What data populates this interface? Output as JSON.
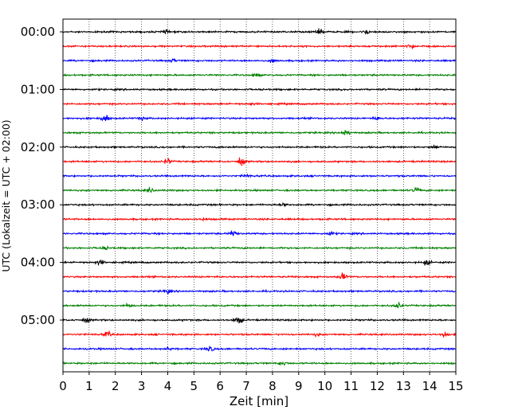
{
  "chart_data": {
    "type": "line",
    "title": "",
    "xlabel": "Zeit  [min]",
    "ylabel": "UTC (Lokalzeit = UTC + 02:00)",
    "xlim": [
      0,
      15
    ],
    "x_ticks": [
      0,
      1,
      2,
      3,
      4,
      5,
      6,
      7,
      8,
      9,
      10,
      11,
      12,
      13,
      14,
      15
    ],
    "y_tick_labels": [
      "00:00",
      "01:00",
      "02:00",
      "03:00",
      "04:00",
      "05:00"
    ],
    "grid": "vertical dotted lines at each minute",
    "legend": "none",
    "trace_interval_minutes": 15,
    "trace_colors": [
      "#000000",
      "#ff0000",
      "#0000ff",
      "#008000"
    ],
    "traces": [
      {
        "start": "00:00",
        "events": [
          [
            3.9,
            0.55
          ],
          [
            9.8,
            1.0
          ],
          [
            11.6,
            0.7
          ]
        ]
      },
      {
        "start": "00:15",
        "events": [
          [
            13.3,
            0.9
          ]
        ]
      },
      {
        "start": "00:30",
        "events": [
          [
            4.2,
            0.5
          ],
          [
            8.0,
            0.6
          ]
        ]
      },
      {
        "start": "00:45",
        "events": [
          [
            7.4,
            0.5
          ]
        ]
      },
      {
        "start": "01:00",
        "events": []
      },
      {
        "start": "01:15",
        "events": [
          [
            7.2,
            0.4
          ]
        ]
      },
      {
        "start": "01:30",
        "events": [
          [
            1.6,
            1.6
          ],
          [
            3.0,
            0.6
          ],
          [
            12.0,
            0.6
          ]
        ]
      },
      {
        "start": "01:45",
        "events": [
          [
            10.8,
            1.0
          ]
        ]
      },
      {
        "start": "02:00",
        "events": [
          [
            14.2,
            0.6
          ]
        ]
      },
      {
        "start": "02:15",
        "events": [
          [
            4.0,
            1.0
          ],
          [
            6.8,
            1.4
          ]
        ]
      },
      {
        "start": "02:30",
        "events": [
          [
            7.0,
            0.6
          ]
        ]
      },
      {
        "start": "02:45",
        "events": [
          [
            3.3,
            0.9
          ],
          [
            13.5,
            0.8
          ]
        ]
      },
      {
        "start": "03:00",
        "events": [
          [
            8.4,
            0.6
          ]
        ]
      },
      {
        "start": "03:15",
        "events": [
          [
            5.3,
            0.4
          ]
        ]
      },
      {
        "start": "03:30",
        "events": [
          [
            6.5,
            1.2
          ],
          [
            10.2,
            0.6
          ]
        ]
      },
      {
        "start": "03:45",
        "events": [
          [
            1.6,
            0.5
          ]
        ]
      },
      {
        "start": "04:00",
        "events": [
          [
            1.4,
            0.9
          ],
          [
            13.9,
            0.9
          ]
        ]
      },
      {
        "start": "04:15",
        "events": [
          [
            10.7,
            1.3
          ]
        ]
      },
      {
        "start": "04:30",
        "events": [
          [
            4.0,
            0.9
          ]
        ]
      },
      {
        "start": "04:45",
        "events": [
          [
            2.5,
            0.5
          ],
          [
            12.8,
            1.1
          ]
        ]
      },
      {
        "start": "05:00",
        "events": [
          [
            0.9,
            0.8
          ],
          [
            6.7,
            1.7
          ]
        ]
      },
      {
        "start": "05:15",
        "events": [
          [
            1.7,
            1.0
          ],
          [
            9.7,
            0.5
          ],
          [
            14.6,
            0.9
          ]
        ]
      },
      {
        "start": "05:30",
        "events": [
          [
            4.0,
            0.7
          ],
          [
            5.6,
            1.0
          ]
        ]
      },
      {
        "start": "05:45",
        "events": [
          [
            8.4,
            0.7
          ]
        ]
      }
    ]
  }
}
